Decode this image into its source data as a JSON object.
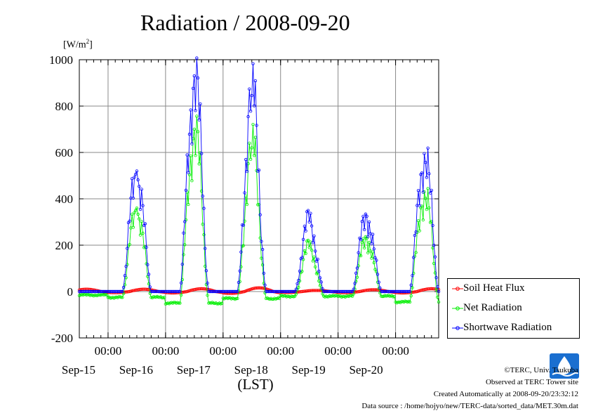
{
  "page": {
    "title": "Radiation / 2008-09-20",
    "unit_label": "[W/m",
    "unit_sup": "2",
    "unit_close": "]"
  },
  "chart_data": {
    "type": "line",
    "title": "Radiation / 2008-09-20",
    "xlabel": "(LST)",
    "ylabel": "[W/m2]",
    "ylim": [
      -200,
      1000
    ],
    "yticks": [
      -200,
      0,
      200,
      400,
      600,
      800,
      1000
    ],
    "xlim": [
      "2008-09-14T12:00",
      "2008-09-20T18:00"
    ],
    "x_major_ticks": [
      "2008-09-15T00:00",
      "2008-09-16T00:00",
      "2008-09-17T00:00",
      "2008-09-18T00:00",
      "2008-09-19T00:00",
      "2008-09-20T00:00"
    ],
    "x_tick_labels_time": [
      "00:00",
      "00:00",
      "00:00",
      "00:00",
      "00:00",
      "00:00"
    ],
    "x_tick_labels_date": [
      "Sep-15",
      "Sep-16",
      "Sep-17",
      "Sep-18",
      "Sep-19",
      "Sep-20"
    ],
    "grid": true,
    "legend_position": "bottom-right, outside plot",
    "sampling": "30-minute values",
    "series": [
      {
        "name": "Soil Heat Flux",
        "color": "#ff0000",
        "marker": "circle",
        "daily_min": [
          -5,
          -6,
          -8,
          -4,
          -5,
          -6
        ],
        "daily_max": [
          10,
          12,
          16,
          5,
          8,
          12
        ]
      },
      {
        "name": "Net Radiation",
        "color": "#00ee00",
        "marker": "circle",
        "night_values": [
          -15,
          -25,
          -50,
          -30,
          -20,
          -20,
          -45
        ],
        "daily_peak": [
          360,
          700,
          620,
          190,
          230,
          430
        ]
      },
      {
        "name": "Shortwave Radiation",
        "color": "#0000ff",
        "marker": "circle",
        "night_values": [
          0,
          0,
          0,
          0,
          0,
          0,
          0
        ],
        "daily_peak": [
          520,
          930,
          845,
          300,
          325,
          595
        ]
      }
    ]
  },
  "legend": {
    "items": [
      {
        "label": "Soil Heat Flux",
        "color": "#ff0000"
      },
      {
        "label": "Net Radiation",
        "color": "#00ee00"
      },
      {
        "label": "Shortwave Radiation",
        "color": "#0000ff"
      }
    ]
  },
  "footer": {
    "copyright": "©TERC, Univ. Tsukuba",
    "observed": "Observed at TERC Tower site",
    "created": "Created Automatically at 2008-09-20/23:32:12",
    "source": "Data source : /home/hojyo/new/TERC-data/sorted_data/MET.30m.dat"
  },
  "logo": {
    "text": "TERC",
    "color": "#1a6fd0"
  }
}
